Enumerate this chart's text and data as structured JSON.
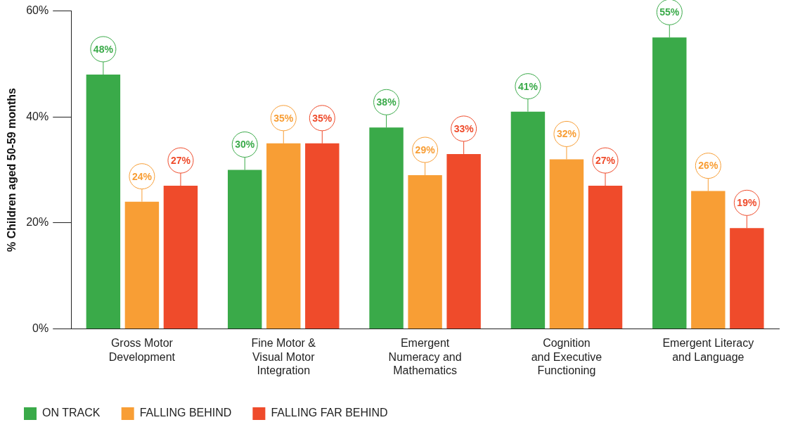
{
  "chart_data": {
    "type": "bar",
    "ylabel": "% Children aged 50-59 months",
    "categories": [
      "Gross Motor\nDevelopment",
      "Fine Motor &\nVisual Motor\nIntegration",
      "Emergent\nNumeracy and\nMathematics",
      "Cognition\nand Executive\nFunctioning",
      "Emergent Literacy\nand Language"
    ],
    "series": [
      {
        "name": "ON TRACK",
        "color": "#3aaa49",
        "values": [
          48,
          30,
          38,
          41,
          55
        ],
        "value_labels": [
          "48%",
          "30%",
          "38%",
          "41%",
          "55%"
        ]
      },
      {
        "name": "FALLING BEHIND",
        "color": "#f89e35",
        "values": [
          24,
          35,
          29,
          32,
          26
        ],
        "value_labels": [
          "24%",
          "35%",
          "29%",
          "32%",
          "26%"
        ]
      },
      {
        "name": "FALLING FAR BEHIND",
        "color": "#ef4b2b",
        "values": [
          27,
          35,
          33,
          27,
          19
        ],
        "value_labels": [
          "27%",
          "35%",
          "33%",
          "27%",
          "19%"
        ]
      }
    ],
    "ylim": [
      0,
      60
    ],
    "yticks": [
      {
        "value": 0,
        "label": "0%"
      },
      {
        "value": 20,
        "label": "20%"
      },
      {
        "value": 40,
        "label": "40%"
      },
      {
        "value": 60,
        "label": "60%"
      }
    ],
    "grid": false,
    "legend": "bottom left"
  }
}
